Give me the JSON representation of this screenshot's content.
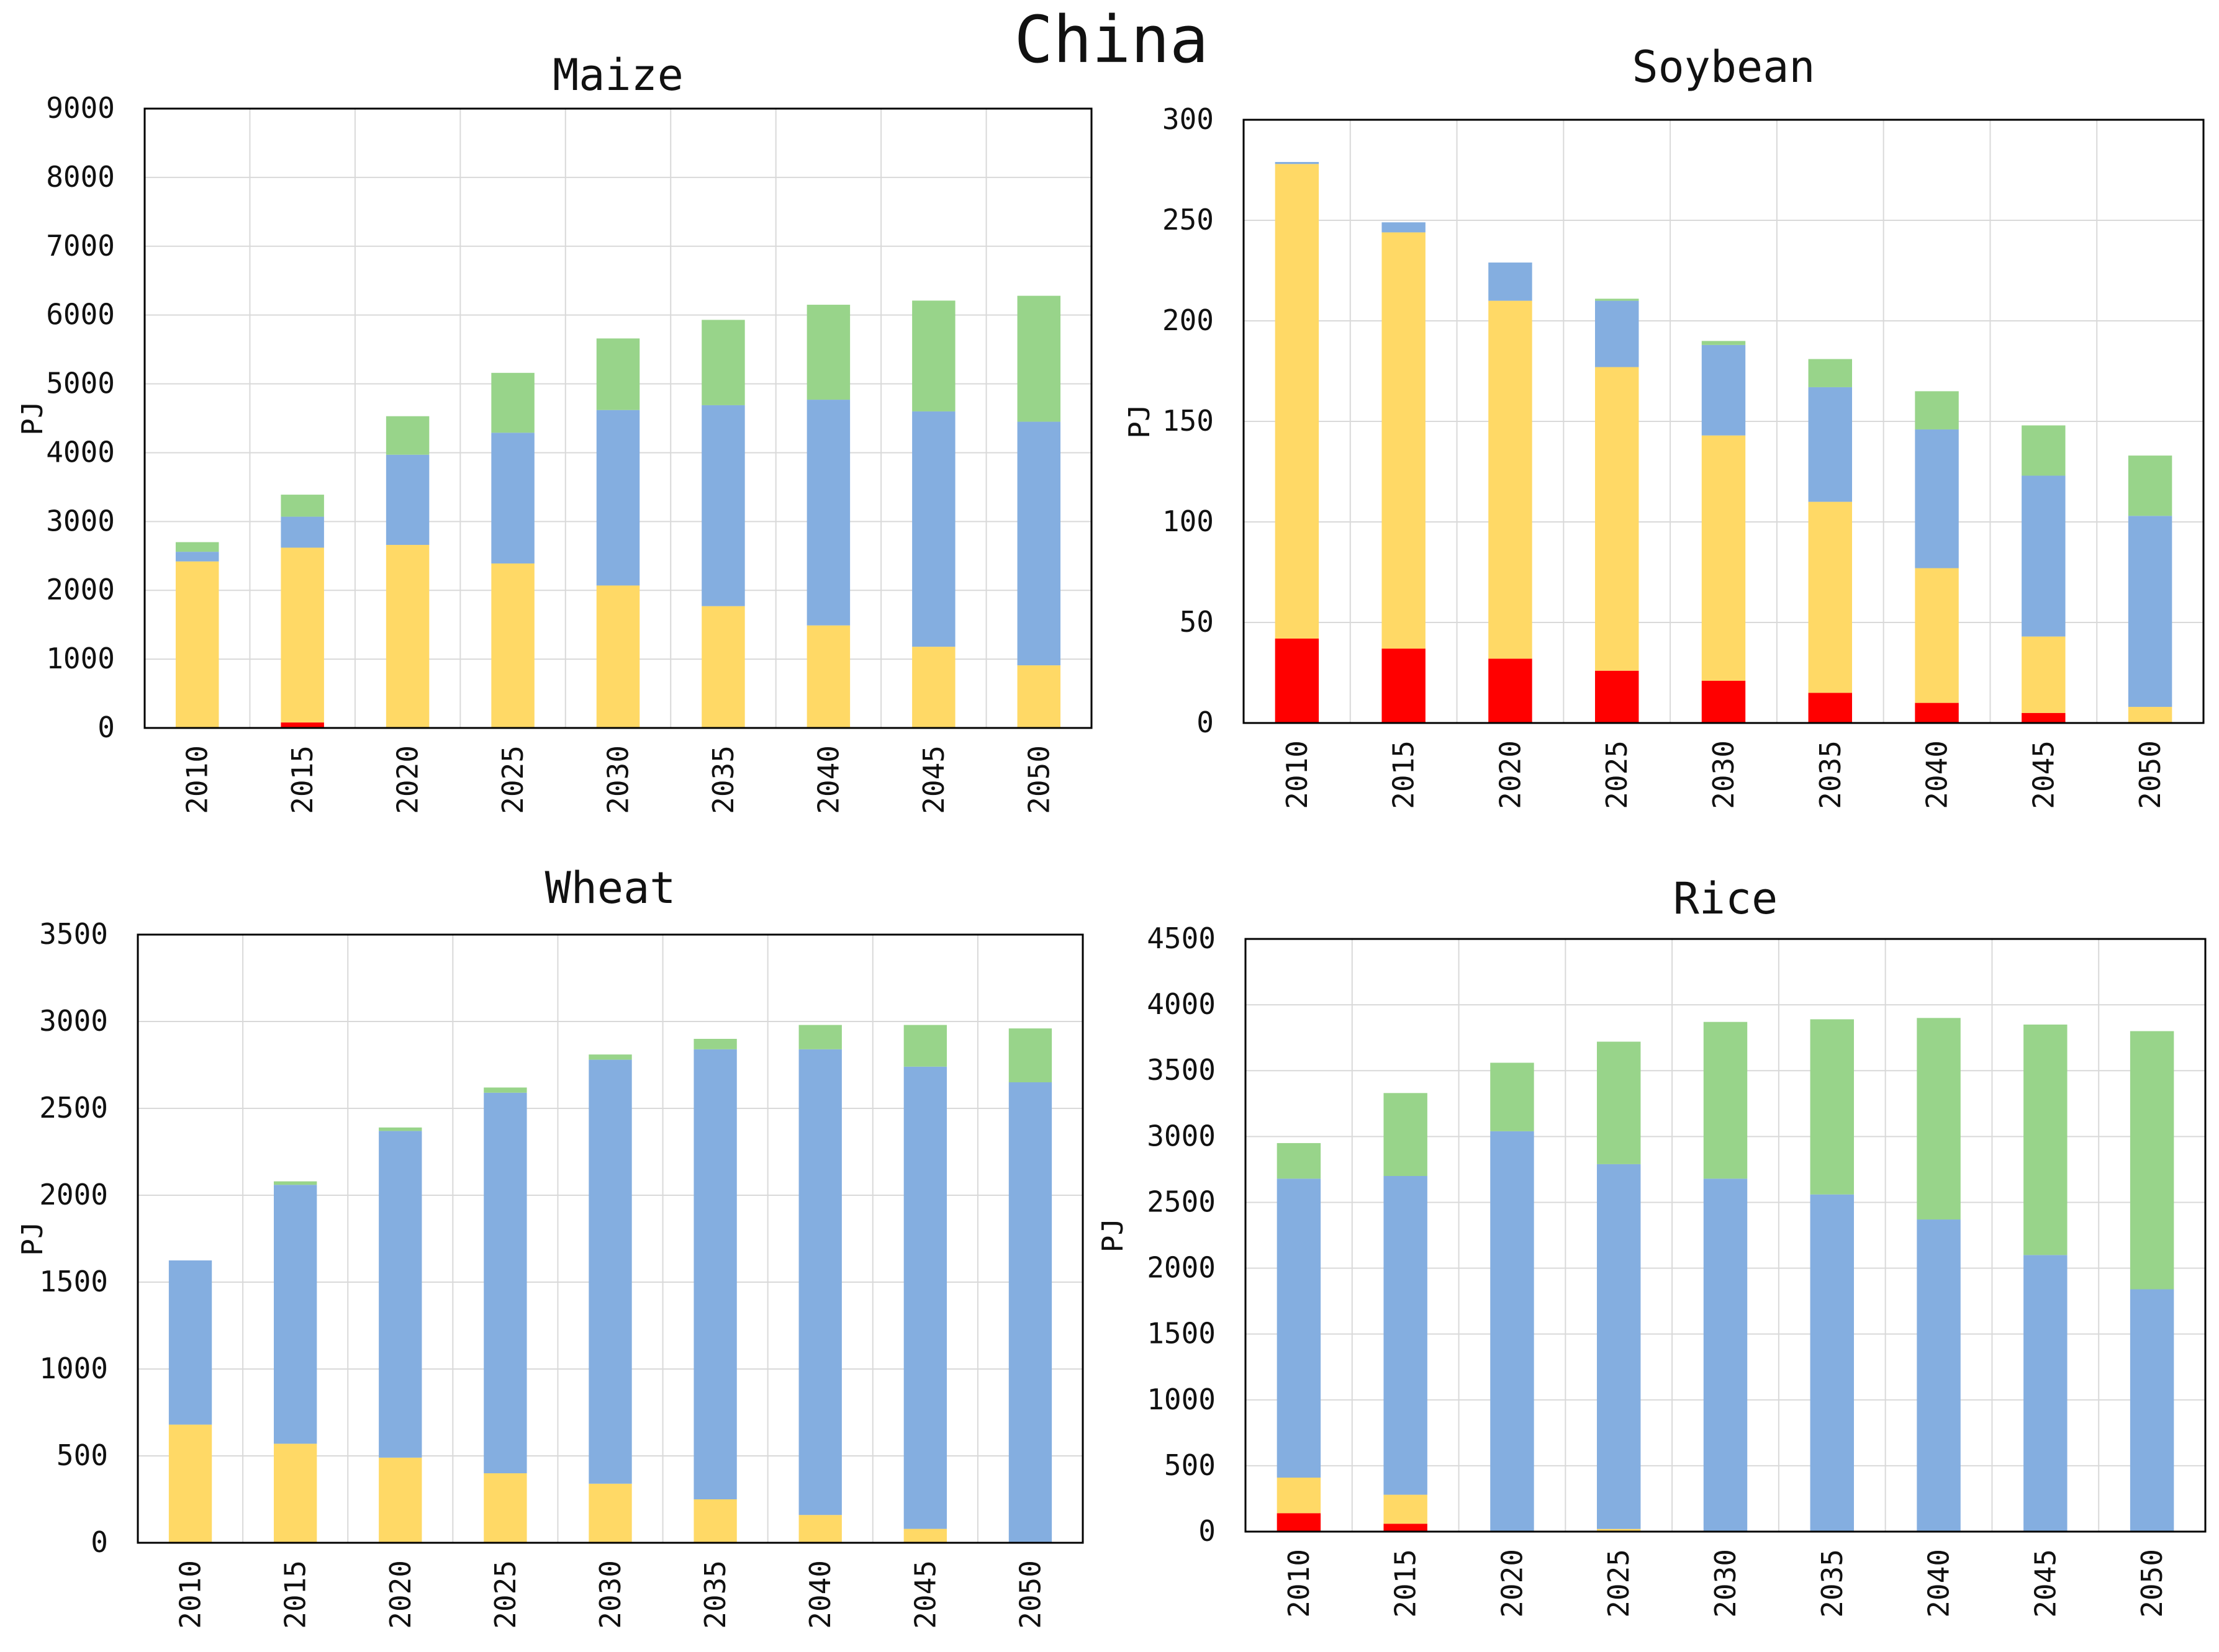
{
  "figure_title": "China",
  "chart_data": [
    {
      "type": "bar",
      "stacked": true,
      "title": "Maize",
      "xlabel": "",
      "ylabel": "PJ",
      "ylim": [
        0,
        9000
      ],
      "yticks": [
        0,
        1000,
        2000,
        3000,
        4000,
        5000,
        6000,
        7000,
        8000,
        9000
      ],
      "grid": true,
      "categories": [
        "2010",
        "2015",
        "2020",
        "2025",
        "2030",
        "2035",
        "2040",
        "2045",
        "2050"
      ],
      "series": [
        {
          "name": "red",
          "color": "#ff0000",
          "values": [
            0,
            80,
            0,
            0,
            0,
            0,
            0,
            0,
            0
          ]
        },
        {
          "name": "yellow",
          "color": "#ffd966",
          "values": [
            2420,
            2540,
            2660,
            2390,
            2070,
            1770,
            1490,
            1180,
            910
          ]
        },
        {
          "name": "blue",
          "color": "#84aee0",
          "values": [
            140,
            450,
            1310,
            1900,
            2550,
            2920,
            3280,
            3420,
            3540
          ]
        },
        {
          "name": "green",
          "color": "#98d48a",
          "values": [
            140,
            320,
            560,
            870,
            1040,
            1240,
            1380,
            1610,
            1830
          ]
        }
      ]
    },
    {
      "type": "bar",
      "stacked": true,
      "title": "Soybean",
      "xlabel": "",
      "ylabel": "PJ",
      "ylim": [
        0,
        300
      ],
      "yticks": [
        0,
        50,
        100,
        150,
        200,
        250,
        300
      ],
      "grid": true,
      "categories": [
        "2010",
        "2015",
        "2020",
        "2025",
        "2030",
        "2035",
        "2040",
        "2045",
        "2050"
      ],
      "series": [
        {
          "name": "red",
          "color": "#ff0000",
          "values": [
            42,
            37,
            32,
            26,
            21,
            15,
            10,
            5,
            0
          ]
        },
        {
          "name": "yellow",
          "color": "#ffd966",
          "values": [
            236,
            207,
            178,
            151,
            122,
            95,
            67,
            38,
            8
          ]
        },
        {
          "name": "blue",
          "color": "#84aee0",
          "values": [
            1,
            5,
            19,
            33,
            45,
            57,
            69,
            80,
            95
          ]
        },
        {
          "name": "green",
          "color": "#98d48a",
          "values": [
            0,
            0,
            0,
            1,
            2,
            14,
            19,
            25,
            30
          ]
        }
      ]
    },
    {
      "type": "bar",
      "stacked": true,
      "title": "Wheat",
      "xlabel": "",
      "ylabel": "PJ",
      "ylim": [
        0,
        3500
      ],
      "yticks": [
        0,
        500,
        1000,
        1500,
        2000,
        2500,
        3000,
        3500
      ],
      "grid": true,
      "categories": [
        "2010",
        "2015",
        "2020",
        "2025",
        "2030",
        "2035",
        "2040",
        "2045",
        "2050"
      ],
      "series": [
        {
          "name": "red",
          "color": "#ff0000",
          "values": [
            0,
            0,
            0,
            0,
            0,
            0,
            0,
            0,
            0
          ]
        },
        {
          "name": "yellow",
          "color": "#ffd966",
          "values": [
            680,
            570,
            490,
            400,
            340,
            250,
            160,
            80,
            0
          ]
        },
        {
          "name": "blue",
          "color": "#84aee0",
          "values": [
            945,
            1490,
            1880,
            2190,
            2440,
            2590,
            2680,
            2660,
            2650
          ]
        },
        {
          "name": "green",
          "color": "#98d48a",
          "values": [
            0,
            20,
            20,
            30,
            30,
            60,
            140,
            240,
            310
          ]
        }
      ]
    },
    {
      "type": "bar",
      "stacked": true,
      "title": "Rice",
      "xlabel": "",
      "ylabel": "PJ",
      "ylim": [
        0,
        4500
      ],
      "yticks": [
        0,
        500,
        1000,
        1500,
        2000,
        2500,
        3000,
        3500,
        4000,
        4500
      ],
      "grid": true,
      "categories": [
        "2010",
        "2015",
        "2020",
        "2025",
        "2030",
        "2035",
        "2040",
        "2045",
        "2050"
      ],
      "series": [
        {
          "name": "red",
          "color": "#ff0000",
          "values": [
            140,
            60,
            0,
            0,
            0,
            0,
            0,
            0,
            0
          ]
        },
        {
          "name": "yellow",
          "color": "#ffd966",
          "values": [
            270,
            220,
            0,
            20,
            0,
            0,
            0,
            0,
            0
          ]
        },
        {
          "name": "blue",
          "color": "#84aee0",
          "values": [
            2270,
            2420,
            3040,
            2770,
            2680,
            2560,
            2370,
            2100,
            1840
          ]
        },
        {
          "name": "green",
          "color": "#98d48a",
          "values": [
            270,
            630,
            520,
            930,
            1190,
            1330,
            1530,
            1750,
            1960
          ]
        }
      ]
    }
  ]
}
